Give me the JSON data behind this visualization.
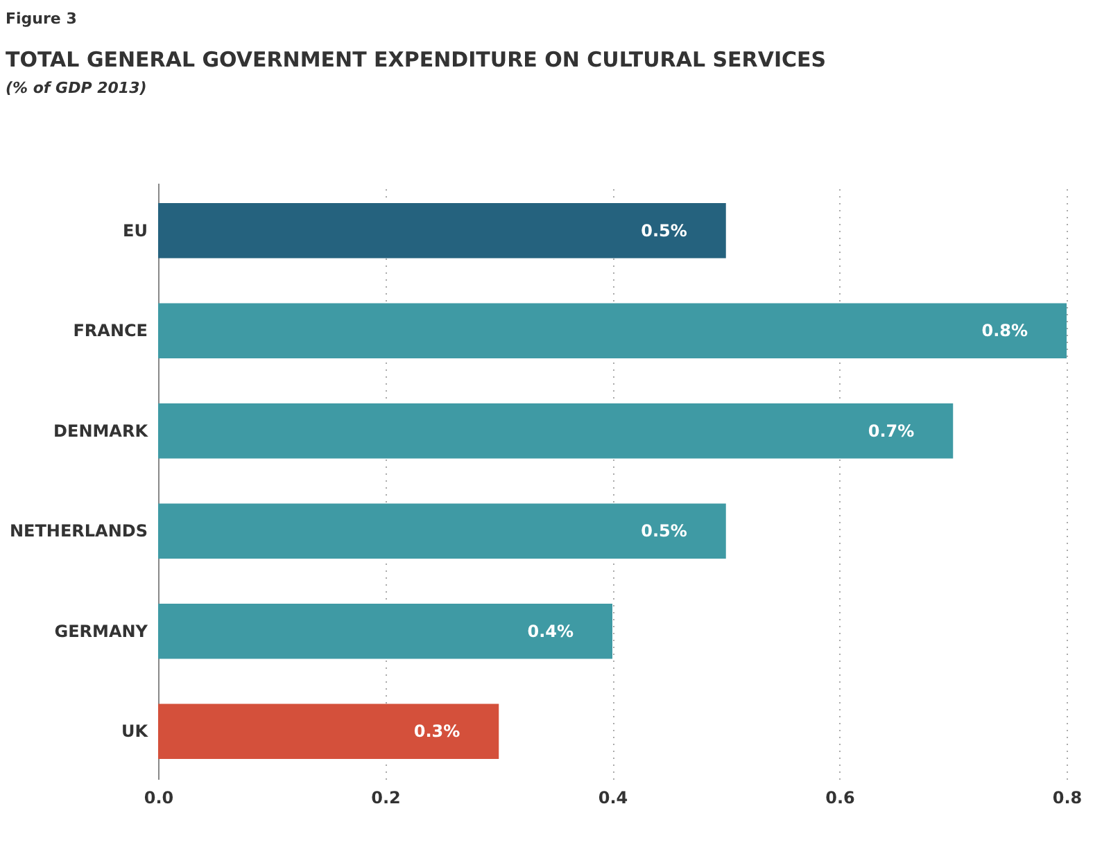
{
  "chart_data": {
    "type": "bar",
    "orientation": "horizontal",
    "title": "TOTAL GENERAL GOVERNMENT EXPENDITURE ON CULTURAL SERVICES",
    "subtitle": "(% of GDP 2013)",
    "annotations": [
      "Figure 3"
    ],
    "categories": [
      "EU",
      "FRANCE",
      "DENMARK",
      "NETHERLANDS",
      "GERMANY",
      "UK"
    ],
    "values": [
      0.5,
      0.8,
      0.7,
      0.5,
      0.4,
      0.3
    ],
    "colors": [
      "#25627e",
      "#3f9aa4",
      "#3f9aa4",
      "#3f9aa4",
      "#3f9aa4",
      "#d4503b"
    ],
    "value_labels": [
      "0.5%",
      "0.8%",
      "0.7%",
      "0.5%",
      "0.4%",
      "0.3%"
    ],
    "xlim": [
      0,
      0.8
    ],
    "xticks": [
      {
        "value": 0,
        "label": "0.0"
      },
      0.2,
      0.4,
      0.6,
      0.8
    ],
    "grid": "x"
  }
}
